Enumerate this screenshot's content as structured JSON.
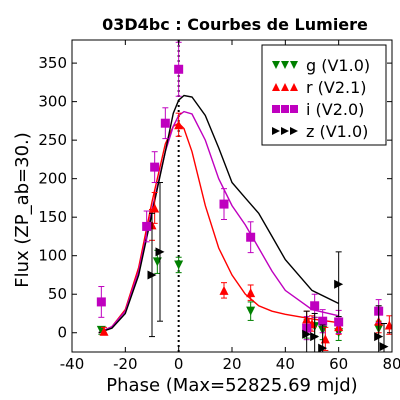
{
  "chart_data": {
    "type": "scatter",
    "title": "03D4bc : Courbes de Lumiere",
    "xlabel": "Phase (Max=52825.69 mjd)",
    "ylabel": "Flux (ZP_ab=30.)",
    "xlim": [
      -40,
      80
    ],
    "ylim": [
      -25,
      380
    ],
    "xticks": [
      -40,
      -20,
      0,
      20,
      40,
      60,
      80
    ],
    "yticks": [
      0,
      50,
      100,
      150,
      200,
      250,
      300,
      350
    ],
    "max_phase": 0,
    "legend_position": "upper-right",
    "series": [
      {
        "name": "g (V1.0)",
        "color": "#008000",
        "marker": "triangle-down",
        "points": [
          {
            "x": -29,
            "y": 3,
            "err": 5
          },
          {
            "x": -8,
            "y": 92,
            "err": 15
          },
          {
            "x": 0,
            "y": 88,
            "err": 10
          },
          {
            "x": 27,
            "y": 28,
            "err": 12
          },
          {
            "x": 48,
            "y": 5,
            "err": 12
          },
          {
            "x": 51,
            "y": 8,
            "err": 12
          },
          {
            "x": 54,
            "y": 3,
            "err": 12
          },
          {
            "x": 60,
            "y": 0,
            "err": 10
          },
          {
            "x": 75,
            "y": 5,
            "err": 10
          }
        ]
      },
      {
        "name": "r (V2.1)",
        "color": "#ff0000",
        "marker": "triangle-up",
        "points": [
          {
            "x": -28,
            "y": 2,
            "err": 5
          },
          {
            "x": -10,
            "y": 140,
            "err": 20
          },
          {
            "x": -9,
            "y": 162,
            "err": 20
          },
          {
            "x": 0,
            "y": 270,
            "err": 15
          },
          {
            "x": 17,
            "y": 55,
            "err": 10
          },
          {
            "x": 27,
            "y": 52,
            "err": 10
          },
          {
            "x": 48,
            "y": 18,
            "err": 10
          },
          {
            "x": 50,
            "y": 12,
            "err": 10
          },
          {
            "x": 55,
            "y": -8,
            "err": 15
          },
          {
            "x": 60,
            "y": 8,
            "err": 10
          },
          {
            "x": 75,
            "y": 15,
            "err": 15
          },
          {
            "x": 79,
            "y": 10,
            "err": 12
          }
        ]
      },
      {
        "name": "i (V2.0)",
        "color": "#bf00bf",
        "marker": "square",
        "points": [
          {
            "x": -29,
            "y": 40,
            "err": 20
          },
          {
            "x": -12,
            "y": 138,
            "err": 20
          },
          {
            "x": -9,
            "y": 215,
            "err": 20
          },
          {
            "x": -5,
            "y": 272,
            "err": 20
          },
          {
            "x": 0,
            "y": 342,
            "err": 35
          },
          {
            "x": 17,
            "y": 167,
            "err": 20
          },
          {
            "x": 27,
            "y": 124,
            "err": 20
          },
          {
            "x": 48,
            "y": 6,
            "err": 15
          },
          {
            "x": 51,
            "y": 35,
            "err": 15
          },
          {
            "x": 54,
            "y": 15,
            "err": 15
          },
          {
            "x": 60,
            "y": 14,
            "err": 15
          },
          {
            "x": 75,
            "y": 28,
            "err": 15
          }
        ]
      },
      {
        "name": "z (V1.0)",
        "color": "#000000",
        "marker": "triangle-right",
        "points": [
          {
            "x": -10,
            "y": 75,
            "err": 80
          },
          {
            "x": -7,
            "y": 105,
            "err": 90
          },
          {
            "x": 48,
            "y": -2,
            "err": 30
          },
          {
            "x": 51,
            "y": -5,
            "err": 30
          },
          {
            "x": 54,
            "y": -20,
            "err": 30
          },
          {
            "x": 60,
            "y": 63,
            "err": 42
          },
          {
            "x": 75,
            "y": -5,
            "err": 40
          },
          {
            "x": 77,
            "y": -18,
            "err": 30
          }
        ]
      }
    ],
    "model_curves": [
      {
        "band": "r",
        "color": "#ff0000",
        "x": [
          -30,
          -25,
          -20,
          -15,
          -10,
          -5,
          -2,
          0,
          2,
          5,
          10,
          15,
          20,
          25,
          30,
          35,
          40,
          50,
          60
        ],
        "y": [
          0,
          8,
          30,
          85,
          170,
          245,
          268,
          272,
          265,
          235,
          165,
          110,
          75,
          50,
          35,
          28,
          24,
          18,
          13
        ]
      },
      {
        "band": "i",
        "color": "#bf00bf",
        "x": [
          -30,
          -25,
          -20,
          -15,
          -10,
          -5,
          -2,
          0,
          2,
          5,
          10,
          15,
          20,
          25,
          30,
          35,
          40,
          50,
          60
        ],
        "y": [
          0,
          8,
          28,
          80,
          160,
          235,
          268,
          282,
          287,
          284,
          250,
          200,
          165,
          140,
          110,
          80,
          55,
          30,
          22
        ]
      },
      {
        "band": "z",
        "color": "#000000",
        "x": [
          -30,
          -25,
          -20,
          -15,
          -10,
          -5,
          -2,
          0,
          2,
          5,
          10,
          15,
          20,
          25,
          30,
          35,
          40,
          50,
          60
        ],
        "y": [
          0,
          6,
          25,
          75,
          155,
          235,
          285,
          302,
          308,
          306,
          282,
          240,
          195,
          175,
          155,
          125,
          95,
          55,
          38
        ]
      }
    ]
  }
}
